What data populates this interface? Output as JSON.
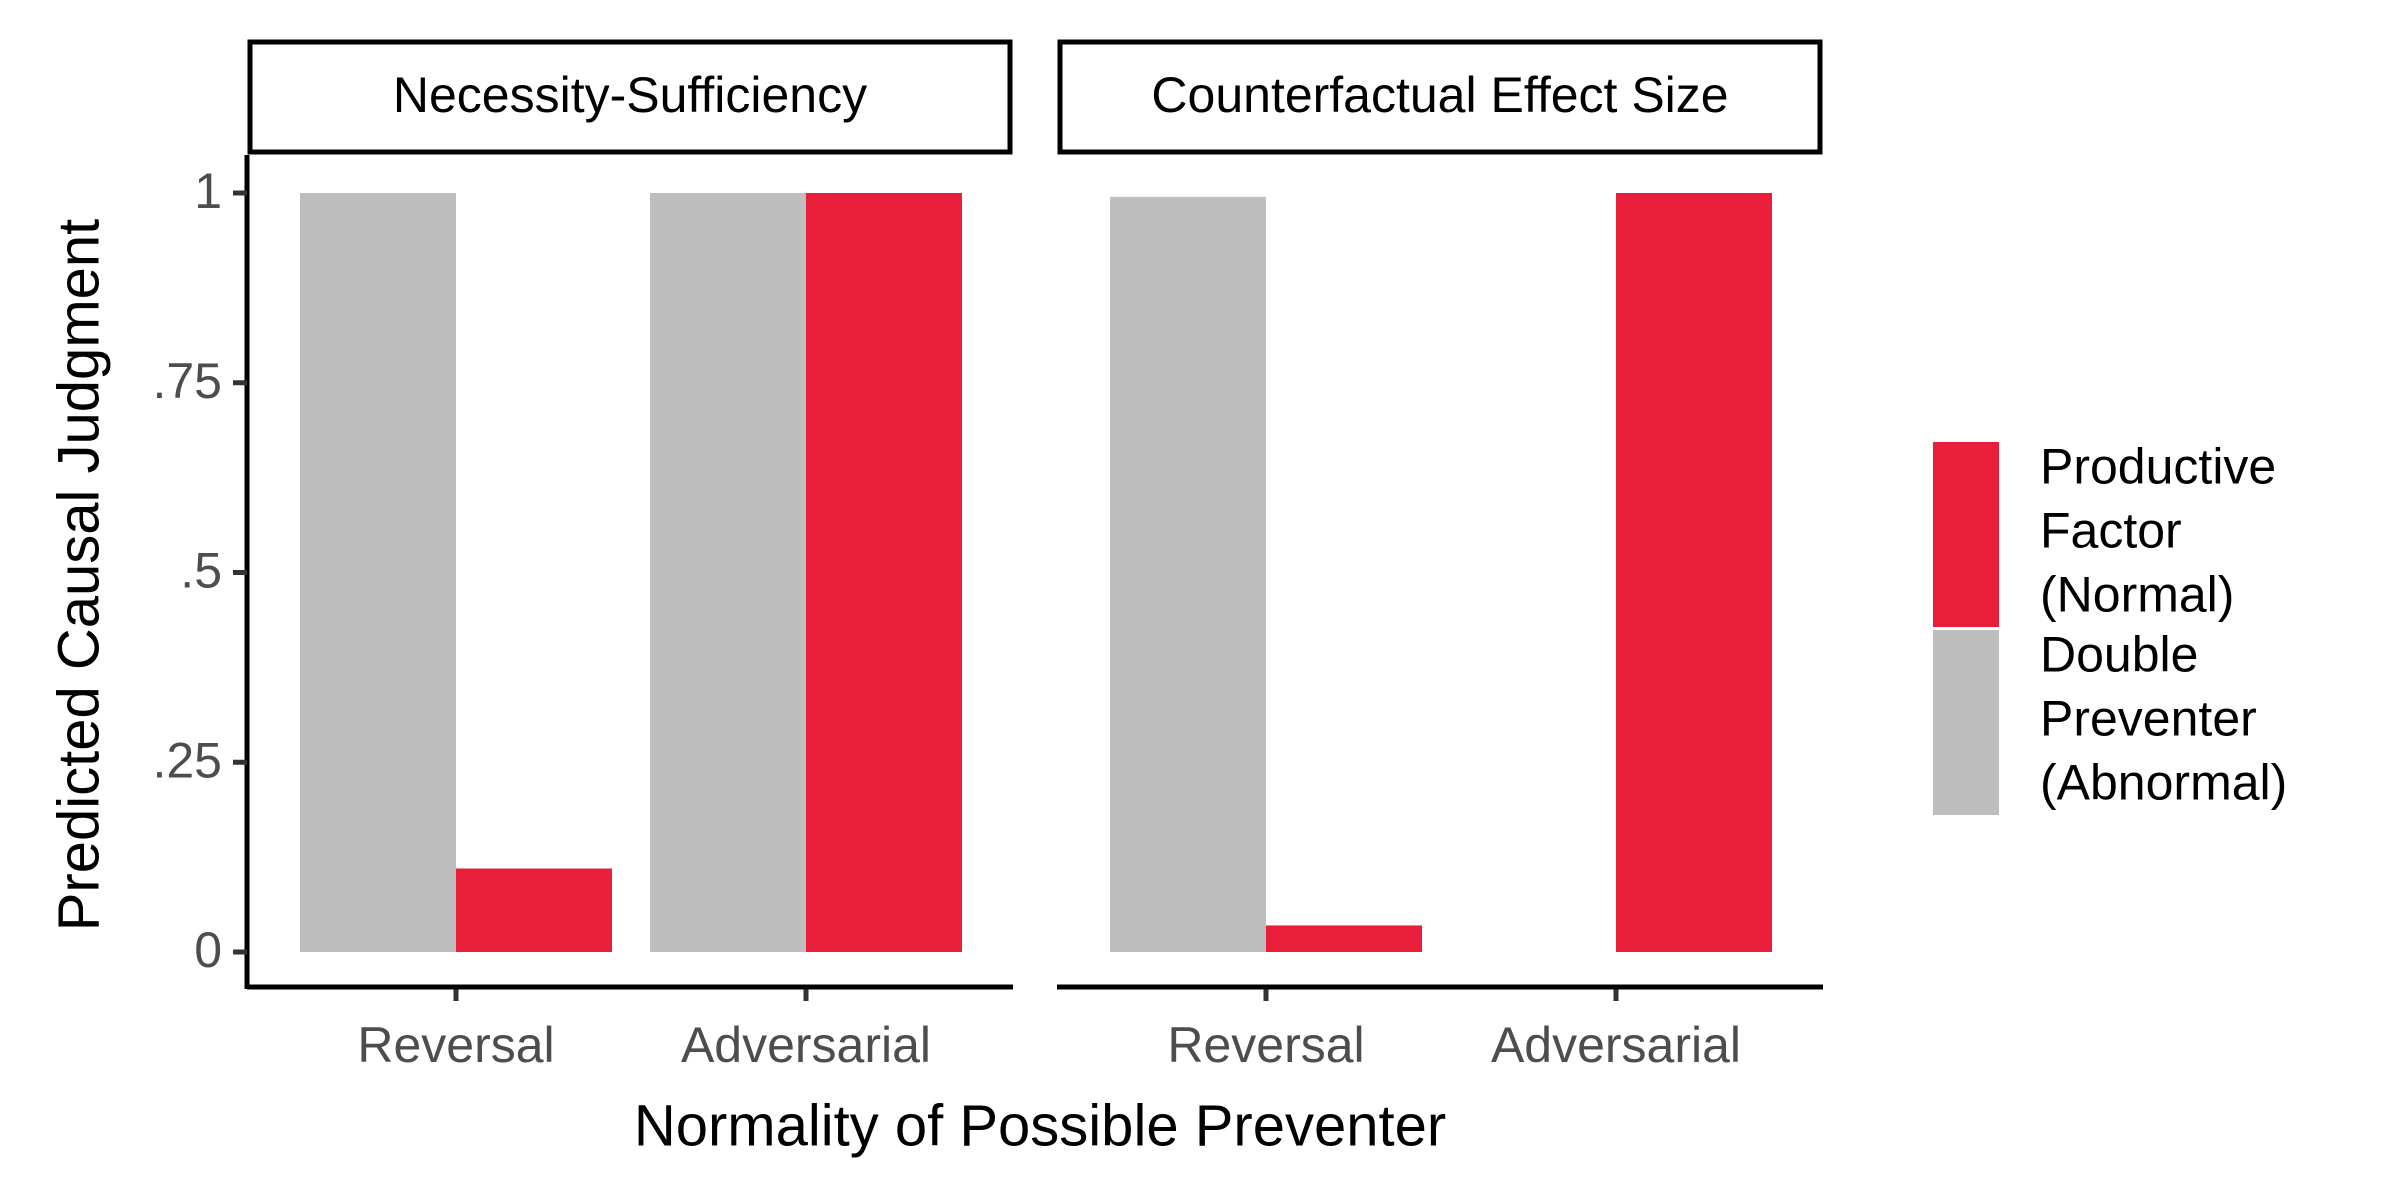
{
  "chart_data": {
    "type": "bar",
    "ylabel": "Predicted Causal Judgment",
    "xlabel": "Normality of Possible Preventer",
    "ylim": [
      0,
      1
    ],
    "yticks": [
      {
        "value": 0,
        "label": "0"
      },
      {
        "value": 0.25,
        "label": ".25"
      },
      {
        "value": 0.5,
        "label": ".5"
      },
      {
        "value": 0.75,
        "label": ".75"
      },
      {
        "value": 1,
        "label": "1"
      }
    ],
    "categories": [
      "Reversal",
      "Adversarial"
    ],
    "legend": {
      "position": "right",
      "entries": [
        {
          "label_lines": [
            "Productive",
            "Factor",
            "(Normal)"
          ],
          "color": "#E81E3A"
        },
        {
          "label_lines": [
            "Double",
            "Preventer",
            "(Abnormal)"
          ],
          "color": "#BEBEBE"
        }
      ]
    },
    "panels": [
      {
        "title": "Necessity-Sufficiency",
        "series": [
          {
            "values": [
              1.0,
              1.0
            ],
            "color": "#BEBEBE"
          },
          {
            "values": [
              0.11,
              1.0
            ],
            "color": "#E81E3A"
          }
        ]
      },
      {
        "title": "Counterfactual Effect Size",
        "series": [
          {
            "values": [
              0.995,
              0.0
            ],
            "color": "#BEBEBE"
          },
          {
            "values": [
              0.035,
              1.0
            ],
            "color": "#E81E3A"
          }
        ]
      }
    ],
    "grid": false
  }
}
